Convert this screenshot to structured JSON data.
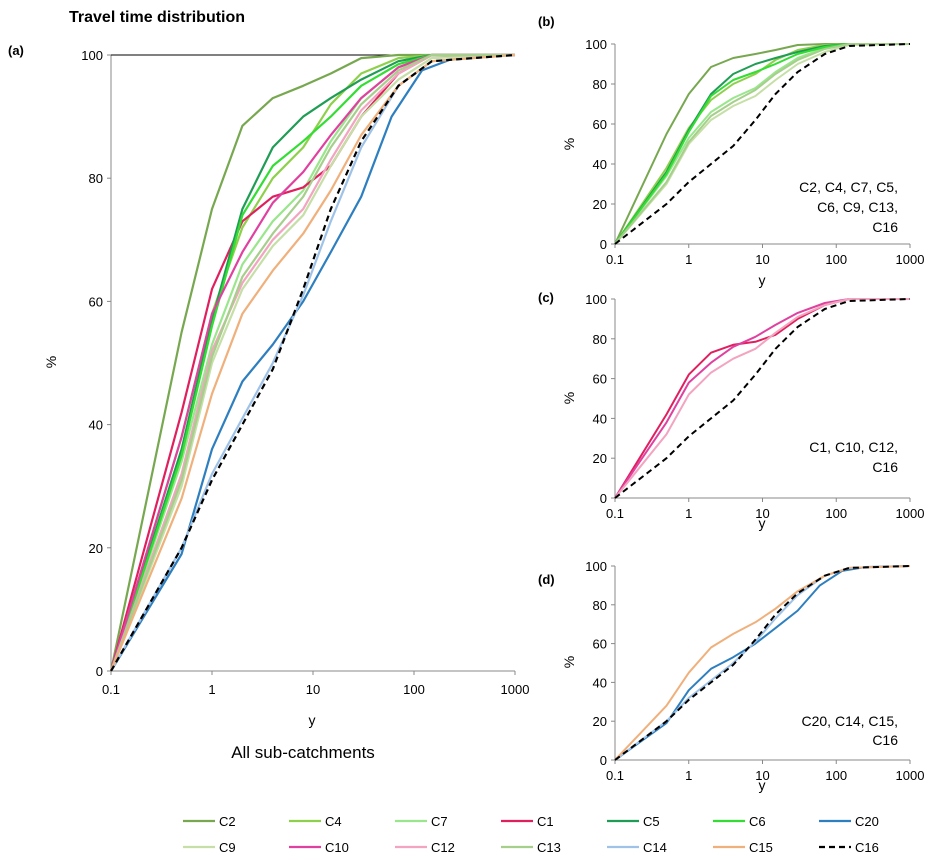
{
  "figure_title": "Travel time distribution",
  "chart_data": [
    {
      "panel": "(a)",
      "type": "line",
      "xscale": "log",
      "xlim": [
        0.1,
        1000
      ],
      "ylim": [
        0,
        100
      ],
      "xticks": [
        "0.1",
        "1",
        "10",
        "100",
        "1000"
      ],
      "yticks": [
        "0",
        "20",
        "40",
        "60",
        "80",
        "100"
      ],
      "xlabel": "y",
      "ylabel": "%",
      "subtitle": "All sub-catchments",
      "annotation": [],
      "series_names": [
        "C2",
        "C4",
        "C7",
        "C1",
        "C5",
        "C6",
        "C20",
        "C9",
        "C10",
        "C12",
        "C13",
        "C14",
        "C15",
        "C16"
      ]
    },
    {
      "panel": "(b)",
      "type": "line",
      "xscale": "log",
      "xlim": [
        0.1,
        1000
      ],
      "ylim": [
        0,
        100
      ],
      "xticks": [
        "0.1",
        "1",
        "10",
        "100",
        "1000"
      ],
      "yticks": [
        "0",
        "20",
        "40",
        "60",
        "80",
        "100"
      ],
      "xlabel": "y",
      "ylabel": "%",
      "annotation": [
        "C2, C4, C7, C5,",
        "C6, C9, C13,",
        "C16"
      ],
      "series_names": [
        "C2",
        "C4",
        "C7",
        "C5",
        "C6",
        "C9",
        "C13",
        "C16"
      ]
    },
    {
      "panel": "(c)",
      "type": "line",
      "xscale": "log",
      "xlim": [
        0.1,
        1000
      ],
      "ylim": [
        0,
        100
      ],
      "xticks": [
        "0.1",
        "1",
        "10",
        "100",
        "1000"
      ],
      "yticks": [
        "0",
        "20",
        "40",
        "60",
        "80",
        "100"
      ],
      "xlabel": "y",
      "ylabel": "%",
      "annotation": [
        "C1, C10, C12,",
        "C16"
      ],
      "series_names": [
        "C1",
        "C10",
        "C12",
        "C16"
      ]
    },
    {
      "panel": "(d)",
      "type": "line",
      "xscale": "log",
      "xlim": [
        0.1,
        1000
      ],
      "ylim": [
        0,
        100
      ],
      "xticks": [
        "0.1",
        "1",
        "10",
        "100",
        "1000"
      ],
      "yticks": [
        "0",
        "20",
        "40",
        "60",
        "80",
        "100"
      ],
      "xlabel": "y",
      "ylabel": "%",
      "annotation": [
        "C20, C14, C15,",
        "C16"
      ],
      "series_names": [
        "C20",
        "C14",
        "C15",
        "C16"
      ]
    }
  ],
  "series": {
    "C2": {
      "color": "#77a850",
      "dashed": false,
      "x": [
        0.1,
        0.5,
        1,
        2,
        4,
        8,
        15,
        30,
        70,
        150,
        1000
      ],
      "y": [
        0,
        55,
        75,
        88.5,
        93,
        95,
        97,
        99.5,
        100,
        100,
        100
      ]
    },
    "C4": {
      "color": "#8ed04b",
      "dashed": false,
      "x": [
        0.1,
        0.5,
        1,
        2,
        4,
        8,
        15,
        30,
        70,
        150,
        1000
      ],
      "y": [
        0,
        38,
        58,
        72,
        80,
        85,
        92,
        97,
        99.5,
        100,
        100
      ]
    },
    "C7": {
      "color": "#99e68c",
      "dashed": false,
      "x": [
        0.1,
        0.5,
        1,
        2,
        4,
        8,
        15,
        30,
        70,
        150,
        1000
      ],
      "y": [
        0,
        34,
        53,
        66,
        73,
        78,
        86,
        93,
        98,
        100,
        100
      ]
    },
    "C1": {
      "color": "#e0205e",
      "dashed": false,
      "x": [
        0.1,
        0.5,
        1,
        2,
        4,
        8,
        15,
        30,
        70,
        150,
        1000
      ],
      "y": [
        0,
        42,
        62,
        73,
        77,
        78.5,
        82,
        90,
        97,
        100,
        100
      ]
    },
    "C5": {
      "color": "#1f9d55",
      "dashed": false,
      "x": [
        0.1,
        0.5,
        1,
        2,
        4,
        8,
        15,
        30,
        70,
        150,
        1000
      ],
      "y": [
        0,
        36,
        57,
        75,
        85,
        90,
        93,
        96,
        99,
        100,
        100
      ]
    },
    "C6": {
      "color": "#33dd33",
      "dashed": false,
      "x": [
        0.1,
        0.5,
        1,
        2,
        4,
        8,
        15,
        30,
        70,
        150,
        1000
      ],
      "y": [
        0,
        35,
        56,
        74,
        82,
        86,
        90,
        95,
        98.5,
        100,
        100
      ]
    },
    "C20": {
      "color": "#2e7fc0",
      "dashed": false,
      "x": [
        0.1,
        0.5,
        1,
        2,
        4,
        8,
        15,
        30,
        60,
        120,
        250,
        1000
      ],
      "y": [
        0,
        19,
        36,
        47,
        53,
        60,
        68,
        77,
        90,
        97.5,
        99.5,
        100
      ]
    },
    "C9": {
      "color": "#c5dfa6",
      "dashed": false,
      "x": [
        0.1,
        0.5,
        1,
        2,
        4,
        8,
        15,
        30,
        70,
        150,
        1000
      ],
      "y": [
        0,
        30,
        50,
        62,
        69,
        74,
        82,
        90,
        96,
        99.5,
        100
      ]
    },
    "C10": {
      "color": "#e040a0",
      "dashed": false,
      "x": [
        0.1,
        0.5,
        1,
        2,
        4,
        8,
        15,
        30,
        70,
        150,
        1000
      ],
      "y": [
        0,
        38,
        58,
        68,
        76,
        81,
        87,
        93,
        98,
        100,
        100
      ]
    },
    "C12": {
      "color": "#f2a4c0",
      "dashed": false,
      "x": [
        0.1,
        0.5,
        1,
        2,
        4,
        8,
        15,
        30,
        70,
        150,
        1000
      ],
      "y": [
        0,
        32,
        52,
        63,
        70,
        75,
        83,
        91,
        97,
        100,
        100
      ]
    },
    "C13": {
      "color": "#a6cf8c",
      "dashed": false,
      "x": [
        0.1,
        0.5,
        1,
        2,
        4,
        8,
        15,
        30,
        70,
        150,
        1000
      ],
      "y": [
        0,
        31,
        51,
        64,
        71,
        77,
        85,
        92,
        97.5,
        100,
        100
      ]
    },
    "C14": {
      "color": "#9fc3e8",
      "dashed": false,
      "x": [
        0.1,
        0.5,
        1,
        2,
        4,
        8,
        15,
        30,
        70,
        150,
        1000
      ],
      "y": [
        0,
        20,
        32,
        41,
        50,
        61,
        73,
        85,
        95,
        99,
        100
      ]
    },
    "C15": {
      "color": "#f0b07c",
      "dashed": false,
      "x": [
        0.1,
        0.5,
        1,
        2,
        4,
        8,
        15,
        30,
        70,
        150,
        1000
      ],
      "y": [
        0,
        28,
        45,
        58,
        65,
        71,
        78,
        87,
        95,
        99,
        100
      ]
    },
    "C16": {
      "color": "#000000",
      "dashed": true,
      "x": [
        0.1,
        0.5,
        1,
        2,
        4,
        8,
        15,
        30,
        70,
        150,
        1000
      ],
      "y": [
        0,
        20,
        31,
        40,
        49,
        62,
        75,
        86,
        95,
        99,
        100
      ]
    }
  },
  "legend": {
    "rows": [
      [
        "C2",
        "C4",
        "C7",
        "C1",
        "C5",
        "C6",
        "C20"
      ],
      [
        "C9",
        "C10",
        "C12",
        "C13",
        "C14",
        "C15",
        "C16"
      ]
    ]
  }
}
